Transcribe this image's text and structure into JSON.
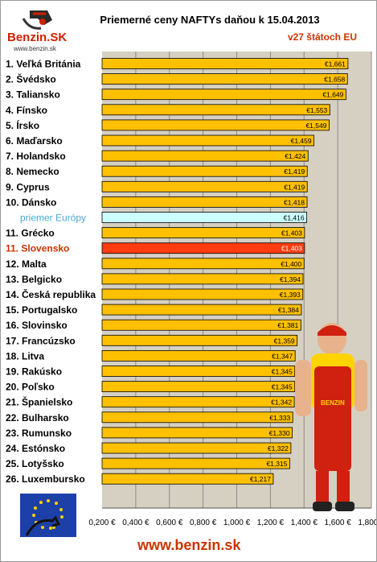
{
  "header": {
    "title": "Priemerné ceny NAFTYs daňou k 15.04.2013",
    "subtitle": "v27 štátoch EU",
    "logo_text": "BenzinSK",
    "logo_url": "www.benzin.sk"
  },
  "footer": {
    "url": "www.benzin.sk"
  },
  "chart_data": {
    "type": "bar",
    "orientation": "horizontal",
    "title": "Priemerné ceny NAFTYs daňou k 15.04.2013",
    "subtitle": "v27 štátoch EU",
    "categories": [
      "1. Veľká Británia",
      "2. Švédsko",
      "3. Taliansko",
      "4. Fínsko",
      "5. Írsko",
      "6. Maďarsko",
      "7. Holandsko",
      "8. Nemecko",
      "9. Cyprus",
      "10. Dánsko",
      "priemer Európy",
      "11. Grécko",
      "11. Slovensko",
      "12. Malta",
      "13. Belgicko",
      "14. Česká republika",
      "15. Portugalsko",
      "16. Slovinsko",
      "17. Francúzsko",
      "18. Litva",
      "19. Rakúsko",
      "20. Poľsko",
      "21. Španielsko",
      "22. Bulharsko",
      "23. Rumunsko",
      "24. Estónsko",
      "25. Lotyšsko",
      "26. Luxembursko"
    ],
    "values": [
      1.661,
      1.658,
      1.649,
      1.553,
      1.549,
      1.459,
      1.424,
      1.419,
      1.419,
      1.418,
      1.416,
      1.403,
      1.403,
      1.4,
      1.394,
      1.393,
      1.384,
      1.381,
      1.359,
      1.347,
      1.345,
      1.345,
      1.342,
      1.333,
      1.33,
      1.322,
      1.315,
      1.217
    ],
    "data_labels": [
      "€1,661",
      "€1,658",
      "€1,649",
      "€1,553",
      "€1,549",
      "€1,459",
      "€1,424",
      "€1,419",
      "€1,419",
      "€1,418",
      "€1,416",
      "€1,403",
      "€1,403",
      "€1,400",
      "€1,394",
      "€1,393",
      "€1,384",
      "€1,381",
      "€1,359",
      "€1,347",
      "€1,345",
      "€1,345",
      "€1,342",
      "€1,333",
      "€1,330",
      "€1,322",
      "€1,315",
      "€1,217"
    ],
    "highlight": {
      "europe_average_index": 10,
      "slovakia_index": 12
    },
    "xlim": [
      0.2,
      1.8
    ],
    "xticks": [
      0.2,
      0.4,
      0.6,
      0.8,
      1.0,
      1.2,
      1.4,
      1.6,
      1.8
    ],
    "xtick_labels": [
      "0,200 €",
      "0,400 €",
      "0,600 €",
      "0,800 €",
      "1,000 €",
      "1,200 €",
      "1,400 €",
      "1,600 €",
      "1,800 €"
    ],
    "colors": {
      "bar": "#ffc000",
      "bar_average": "#ccffff",
      "bar_slovakia": "#ff3b0f",
      "label_average": "#4aa8d8",
      "label_slovakia": "#cc3300",
      "label_default": "#000000",
      "plot_background": "#d6d0c2",
      "gridline": "#8a8a8a"
    },
    "grid": true
  }
}
